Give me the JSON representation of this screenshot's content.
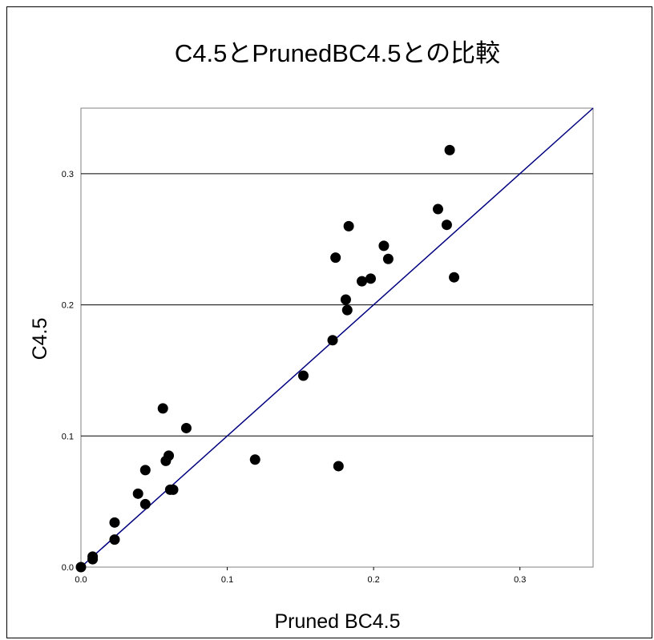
{
  "chart_data": {
    "type": "scatter",
    "title": "C4.5とPrunedBC4.5との比較",
    "xlabel": "Pruned BC4.5",
    "ylabel": "C4.5",
    "xlim": [
      0,
      0.35
    ],
    "ylim": [
      0,
      0.35
    ],
    "xticks": [
      "0.0",
      "0.1",
      "0.2",
      "0.3"
    ],
    "yticks": [
      "0.0",
      "0.1",
      "0.2",
      "0.3"
    ],
    "grid": "horizontal",
    "reference_line": "y = x",
    "colors": {
      "points": "#000000",
      "reference_line": "#000080",
      "grid": "#000000"
    },
    "points": [
      {
        "x": 0.0,
        "y": 0.0
      },
      {
        "x": 0.008,
        "y": 0.006
      },
      {
        "x": 0.008,
        "y": 0.008
      },
      {
        "x": 0.023,
        "y": 0.021
      },
      {
        "x": 0.023,
        "y": 0.034
      },
      {
        "x": 0.039,
        "y": 0.056
      },
      {
        "x": 0.044,
        "y": 0.074
      },
      {
        "x": 0.044,
        "y": 0.048
      },
      {
        "x": 0.056,
        "y": 0.121
      },
      {
        "x": 0.058,
        "y": 0.081
      },
      {
        "x": 0.06,
        "y": 0.085
      },
      {
        "x": 0.061,
        "y": 0.059
      },
      {
        "x": 0.063,
        "y": 0.059
      },
      {
        "x": 0.072,
        "y": 0.106
      },
      {
        "x": 0.119,
        "y": 0.082
      },
      {
        "x": 0.152,
        "y": 0.146
      },
      {
        "x": 0.172,
        "y": 0.173
      },
      {
        "x": 0.174,
        "y": 0.236
      },
      {
        "x": 0.176,
        "y": 0.077
      },
      {
        "x": 0.181,
        "y": 0.204
      },
      {
        "x": 0.182,
        "y": 0.196
      },
      {
        "x": 0.183,
        "y": 0.26
      },
      {
        "x": 0.192,
        "y": 0.218
      },
      {
        "x": 0.198,
        "y": 0.22
      },
      {
        "x": 0.207,
        "y": 0.245
      },
      {
        "x": 0.21,
        "y": 0.235
      },
      {
        "x": 0.244,
        "y": 0.273
      },
      {
        "x": 0.25,
        "y": 0.261
      },
      {
        "x": 0.252,
        "y": 0.318
      },
      {
        "x": 0.255,
        "y": 0.221
      }
    ]
  }
}
